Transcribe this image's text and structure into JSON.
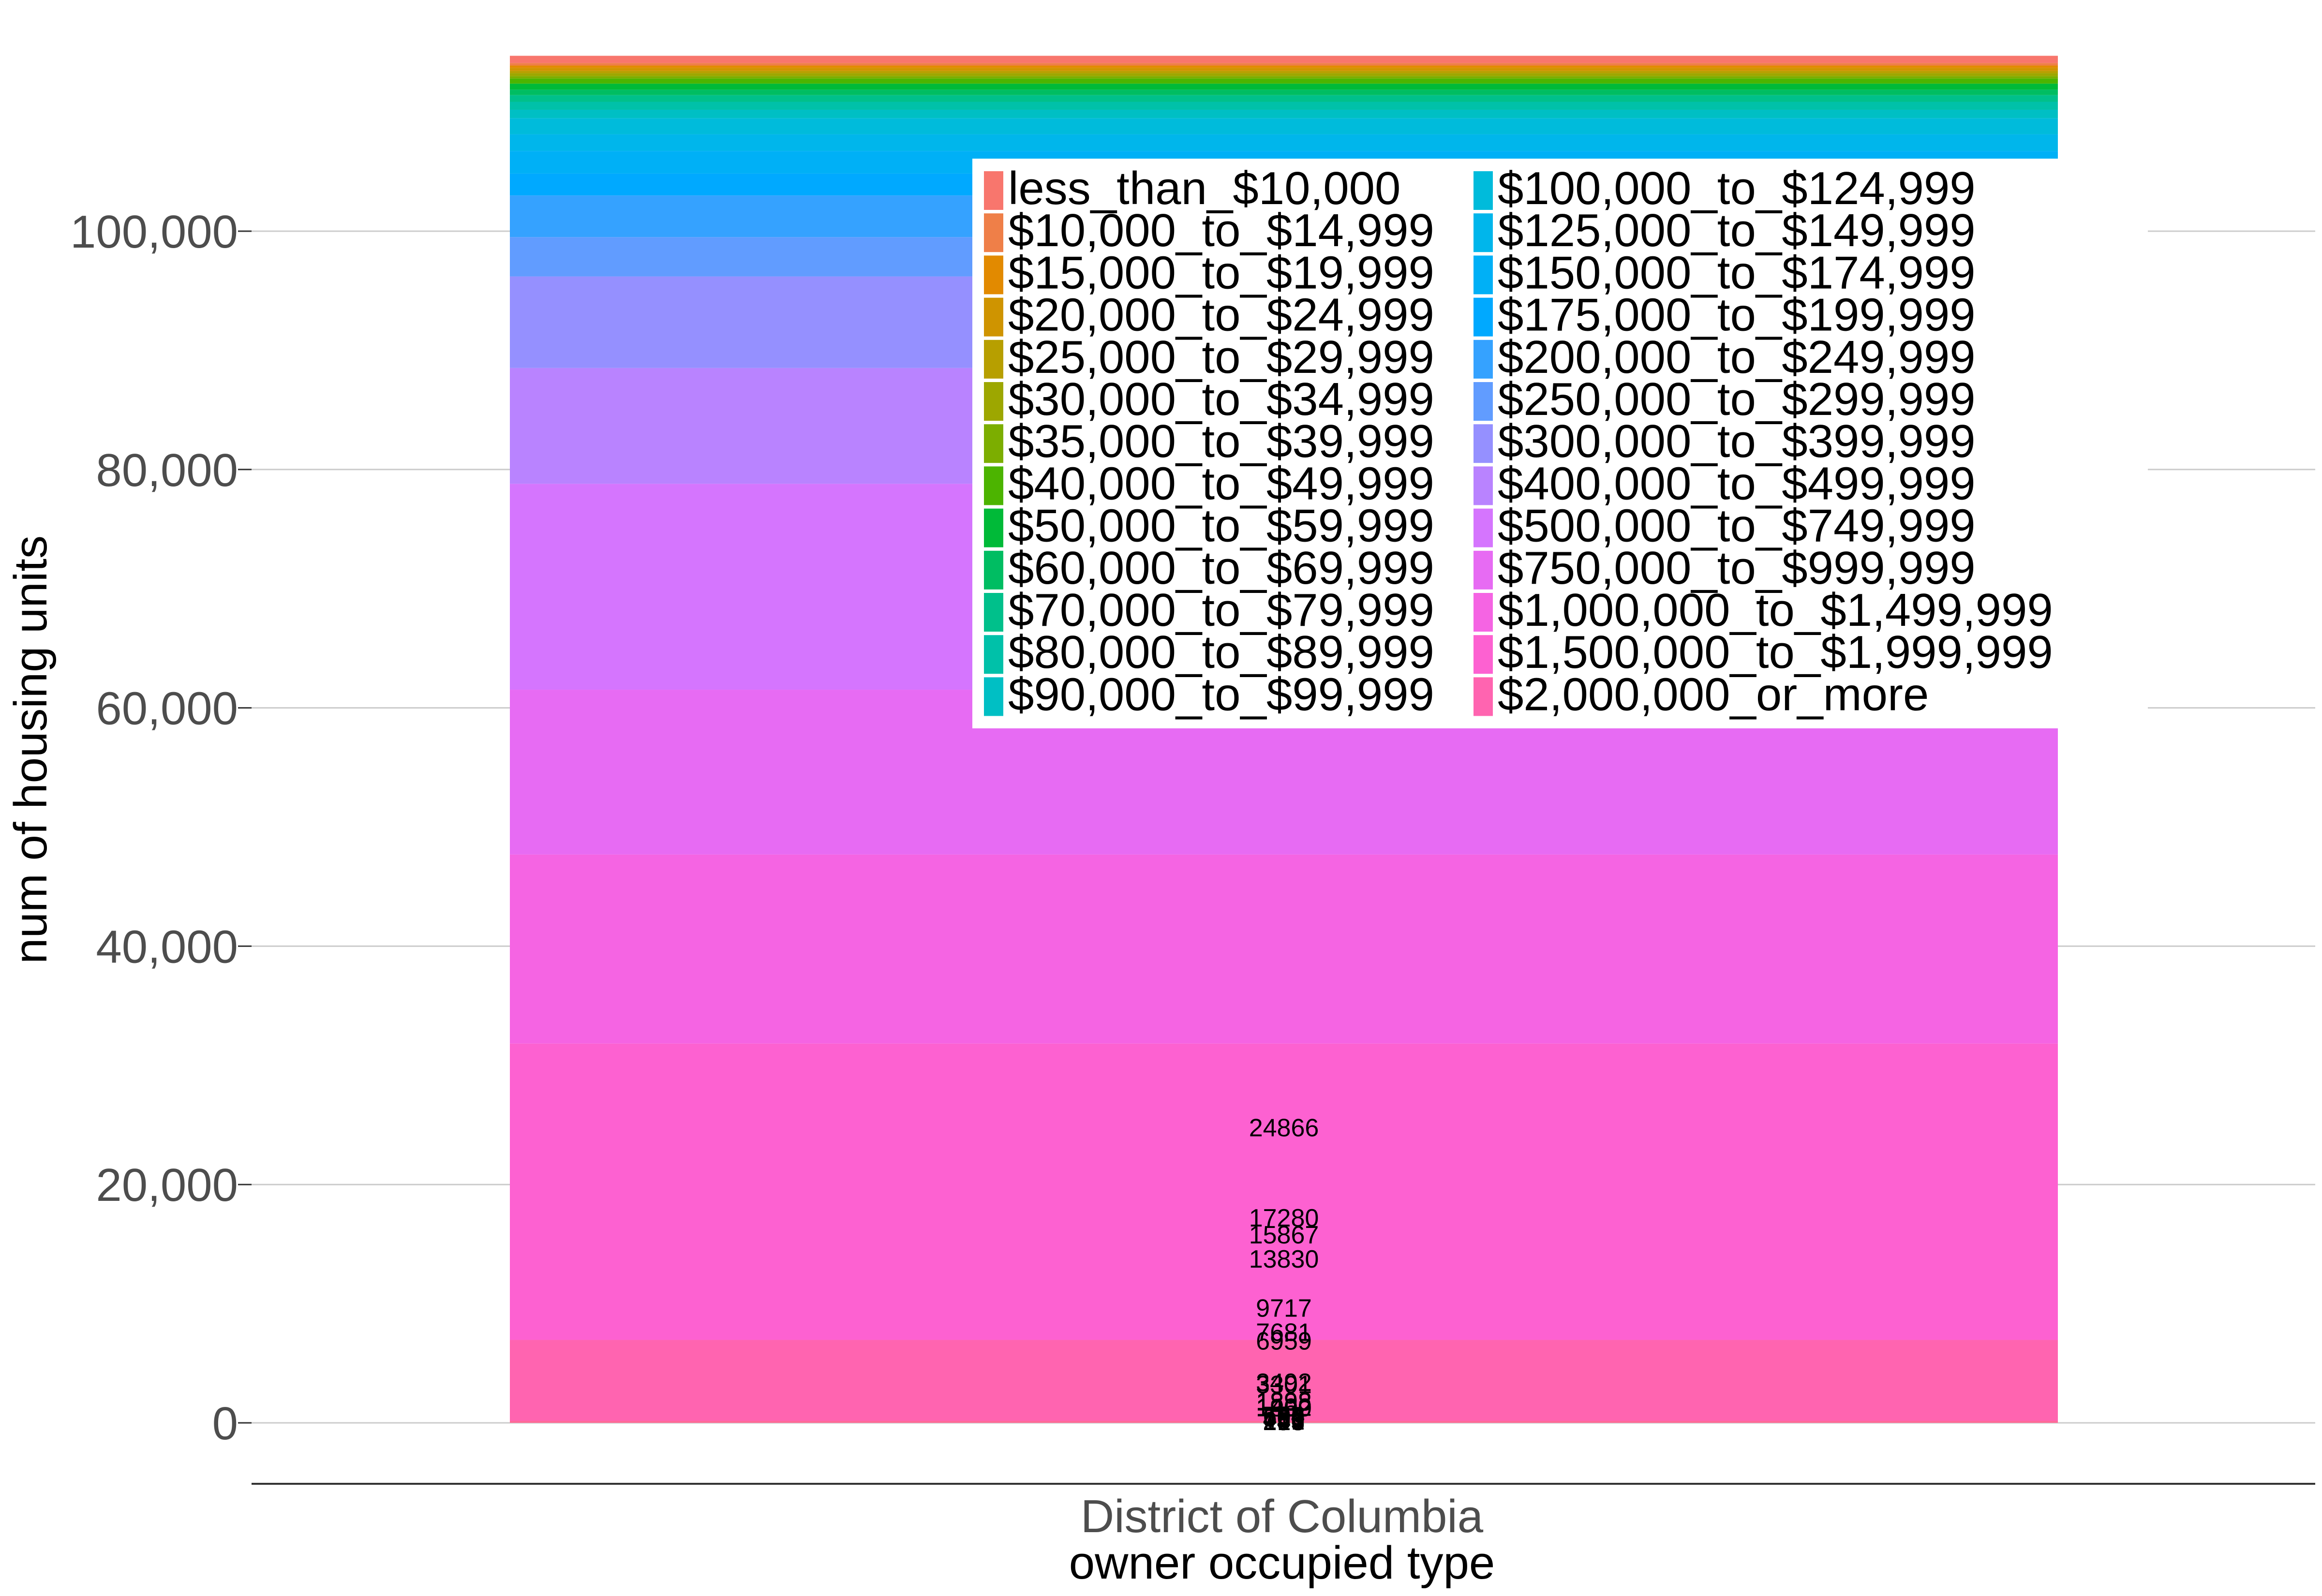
{
  "chart_data": {
    "type": "bar",
    "stacked": true,
    "categories": [
      "District of Columbia"
    ],
    "xlabel": "owner occupied type",
    "ylabel": "num of housing units",
    "ylim": [
      0,
      112903
    ],
    "yticks": [
      0,
      20000,
      40000,
      60000,
      80000,
      100000
    ],
    "ytick_labels": [
      "0",
      "20,000",
      "40,000",
      "60,000",
      "80,000",
      "100,000"
    ],
    "grid": true,
    "legend_placement": "top-right",
    "series": [
      {
        "name": "less_than_$10,000",
        "values": [
          606
        ],
        "color": "#F8766D"
      },
      {
        "name": "$10,000_to_$14,999",
        "values": [
          213
        ],
        "color": "#EF7F48"
      },
      {
        "name": "$15,000_to_$19,999",
        "values": [
          196
        ],
        "color": "#E28A00"
      },
      {
        "name": "$20,000_to_$24,999",
        "values": [
          256
        ],
        "color": "#CF9400"
      },
      {
        "name": "$25,000_to_$29,999",
        "values": [
          193
        ],
        "color": "#B79F00"
      },
      {
        "name": "$30,000_to_$34,999",
        "values": [
          241
        ],
        "color": "#9DA700"
      },
      {
        "name": "$35,000_to_$39,999",
        "values": [
          196
        ],
        "color": "#7CAE00"
      },
      {
        "name": "$40,000_to_$49,999",
        "values": [
          433
        ],
        "color": "#4CB400"
      },
      {
        "name": "$50,000_to_$59,999",
        "values": [
          508
        ],
        "color": "#00BA38"
      },
      {
        "name": "$60,000_to_$69,999",
        "values": [
          460
        ],
        "color": "#00BD62"
      },
      {
        "name": "$70,000_to_$79,999",
        "values": [
          560
        ],
        "color": "#00C08B"
      },
      {
        "name": "$80,000_to_$89,999",
        "values": [
          668
        ],
        "color": "#00C1A9"
      },
      {
        "name": "$90,000_to_$99,999",
        "values": [
          704
        ],
        "color": "#00BFC4"
      },
      {
        "name": "$100,000_to_$124,999",
        "values": [
          1350
        ],
        "color": "#00BBDB"
      },
      {
        "name": "$125,000_to_$149,999",
        "values": [
          1402
        ],
        "color": "#00B6EB"
      },
      {
        "name": "$150,000_to_$174,999",
        "values": [
          1898
        ],
        "color": "#00B0F6"
      },
      {
        "name": "$175,000_to_$199,999",
        "values": [
          1838
        ],
        "color": "#00A9FF"
      },
      {
        "name": "$200,000_to_$249,999",
        "values": [
          3492
        ],
        "color": "#35A2FF"
      },
      {
        "name": "$250,000_to_$299,999",
        "values": [
          3301
        ],
        "color": "#619CFF"
      },
      {
        "name": "$300,000_to_$399,999",
        "values": [
          7681
        ],
        "color": "#9590FF"
      },
      {
        "name": "$400,000_to_$499,999",
        "values": [
          9717
        ],
        "color": "#B983FF"
      },
      {
        "name": "$500,000_to_$749,999",
        "values": [
          17280
        ],
        "color": "#D575FE"
      },
      {
        "name": "$750,000_to_$999,999",
        "values": [
          13830
        ],
        "color": "#E76BF3"
      },
      {
        "name": "$1,000,000_to_$1,499,999",
        "values": [
          15867
        ],
        "color": "#F564E3"
      },
      {
        "name": "$1,500,000_to_$1,999,999",
        "values": [
          24866
        ],
        "color": "#FD61D1"
      },
      {
        "name": "$2,000,000_or_more",
        "values": [
          6959
        ],
        "color": "#FF64B0"
      }
    ],
    "extra_colors": [
      "#FF6A98"
    ],
    "data_labels": [
      "24866",
      "17280",
      "15867",
      "13830",
      "9717",
      "7681",
      "6959",
      "3492",
      "3301",
      "1898",
      "1838",
      "1402",
      "1350",
      "704",
      "668",
      "606",
      "560",
      "508",
      "460",
      "433",
      "256",
      "241",
      "213",
      "196",
      "196",
      "193"
    ]
  }
}
